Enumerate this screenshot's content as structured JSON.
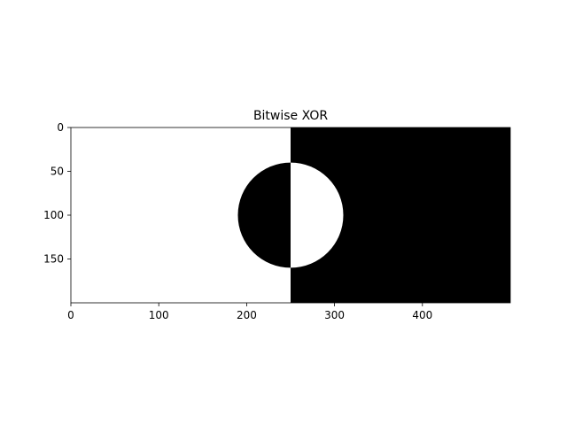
{
  "chart_data": {
    "type": "image",
    "title": "Bitwise XOR",
    "xlabel": "",
    "ylabel": "",
    "image_width": 500,
    "image_height": 200,
    "xlim": [
      0,
      500
    ],
    "ylim": [
      200,
      0
    ],
    "x_ticks": [
      0,
      100,
      200,
      300,
      400
    ],
    "y_ticks": [
      0,
      50,
      100,
      150
    ],
    "regions": [
      {
        "name": "left-half",
        "x_range": [
          0,
          250
        ],
        "color": "#ffffff"
      },
      {
        "name": "right-half",
        "x_range": [
          250,
          500
        ],
        "color": "#000000"
      }
    ],
    "circle": {
      "center_x": 250,
      "center_y": 100,
      "radius": 60,
      "left_color": "#000000",
      "right_color": "#ffffff"
    },
    "colors": {
      "background": "#ffffff",
      "foreground": "#000000",
      "axis": "#000000"
    },
    "grid": false
  }
}
